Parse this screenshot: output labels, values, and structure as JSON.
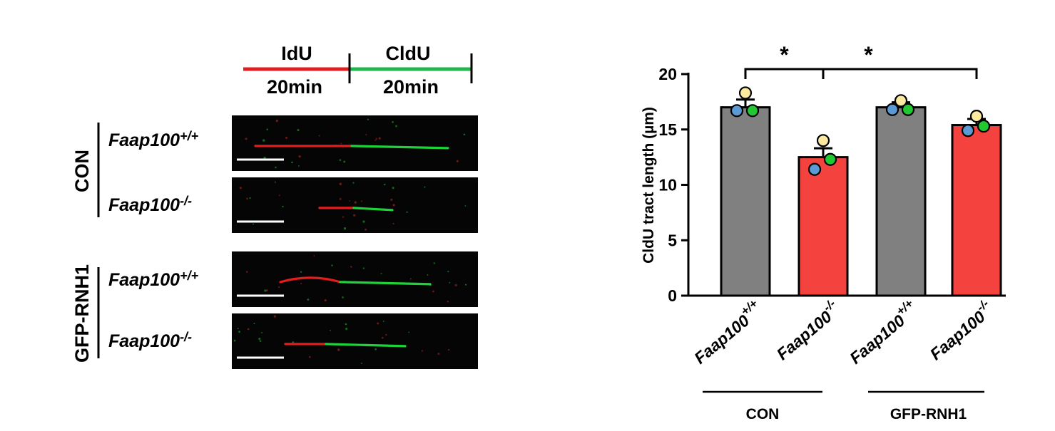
{
  "schematic": {
    "pulse1": {
      "label": "IdU",
      "duration": "20min",
      "color": "#e31d1d"
    },
    "pulse2": {
      "label": "CldU",
      "duration": "20min",
      "color": "#1fb54a"
    }
  },
  "fibers": {
    "groups": [
      {
        "label": "CON",
        "rows": [
          {
            "gene": "Faap100",
            "superscript": "+/+",
            "red_fraction": 0.5,
            "length_fraction": 0.9
          },
          {
            "gene": "Faap100",
            "superscript": "-/-",
            "red_fraction": 0.47,
            "length_fraction": 0.34
          }
        ]
      },
      {
        "label": "GFP-RNH1",
        "rows": [
          {
            "gene": "Faap100",
            "superscript": "+/+",
            "red_fraction": 0.4,
            "length_fraction": 0.7
          },
          {
            "gene": "Faap100",
            "superscript": "-/-",
            "red_fraction": 0.34,
            "length_fraction": 0.56
          }
        ]
      }
    ],
    "colors": {
      "red": "#e31d1d",
      "green": "#1fd23a",
      "background": "#050505"
    }
  },
  "chart_data": {
    "type": "bar",
    "ylabel": "CldU tract length (µm)",
    "ylim": [
      0,
      20
    ],
    "yticks": [
      0,
      5,
      10,
      15,
      20
    ],
    "categories": [
      {
        "gene": "Faap100",
        "superscript": "+/+"
      },
      {
        "gene": "Faap100",
        "superscript": "-/-"
      },
      {
        "gene": "Faap100",
        "superscript": "+/+"
      },
      {
        "gene": "Faap100",
        "superscript": "-/-"
      }
    ],
    "values": [
      17.0,
      12.5,
      17.0,
      15.4
    ],
    "sem": [
      0.7,
      0.8,
      0.45,
      0.55
    ],
    "bar_colors": [
      "#808080",
      "#f4433f",
      "#808080",
      "#f4433f"
    ],
    "points": [
      [
        {
          "value": 18.3,
          "color": "#fbe9a0"
        },
        {
          "value": 16.7,
          "color": "#5b9bd5"
        },
        {
          "value": 16.7,
          "color": "#22c832"
        }
      ],
      [
        {
          "value": 14.0,
          "color": "#fbe9a0"
        },
        {
          "value": 11.4,
          "color": "#5b9bd5"
        },
        {
          "value": 12.3,
          "color": "#22c832"
        }
      ],
      [
        {
          "value": 17.6,
          "color": "#fbe9a0"
        },
        {
          "value": 16.8,
          "color": "#5b9bd5"
        },
        {
          "value": 16.8,
          "color": "#22c832"
        }
      ],
      [
        {
          "value": 16.2,
          "color": "#fbe9a0"
        },
        {
          "value": 14.9,
          "color": "#5b9bd5"
        },
        {
          "value": 15.3,
          "color": "#22c832"
        }
      ]
    ],
    "groups": [
      {
        "label": "CON",
        "bars": [
          0,
          1
        ]
      },
      {
        "label": "GFP-RNH1",
        "bars": [
          2,
          3
        ]
      }
    ],
    "significance": [
      {
        "from": 0,
        "to": 1,
        "label": "*"
      },
      {
        "from": 1,
        "to": 3,
        "label": "*"
      }
    ]
  }
}
